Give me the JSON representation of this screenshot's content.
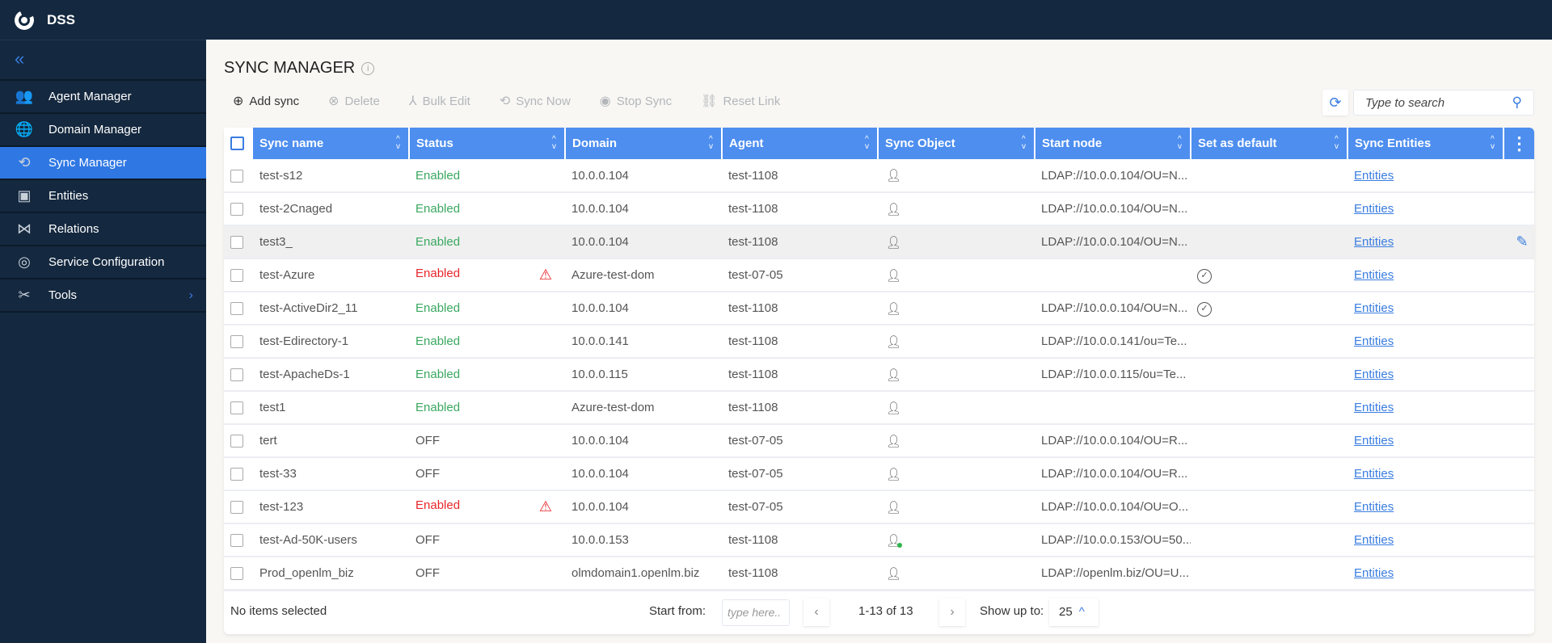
{
  "app": {
    "title": "DSS"
  },
  "sidebar": {
    "collapse_icon": "double-chevron-left",
    "items": [
      {
        "label": "Agent Manager",
        "icon": "agents-icon",
        "active": false
      },
      {
        "label": "Domain Manager",
        "icon": "globe-www-icon",
        "active": false
      },
      {
        "label": "Sync Manager",
        "icon": "sync-folder-icon",
        "active": true
      },
      {
        "label": "Entities",
        "icon": "id-badge-icon",
        "active": false
      },
      {
        "label": "Relations",
        "icon": "relations-icon",
        "active": false
      },
      {
        "label": "Service Configuration",
        "icon": "service-gear-icon",
        "active": false
      },
      {
        "label": "Tools",
        "icon": "tools-icon",
        "active": false,
        "has_submenu": true
      }
    ]
  },
  "page": {
    "title": "SYNC MANAGER"
  },
  "toolbar": {
    "add": "Add sync",
    "delete": "Delete",
    "bulk_edit": "Bulk Edit",
    "sync_now": "Sync Now",
    "stop_sync": "Stop Sync",
    "reset_link": "Reset Link"
  },
  "search": {
    "placeholder": "Type to search"
  },
  "table": {
    "columns": [
      "Sync name",
      "Status",
      "Domain",
      "Agent",
      "Sync Object",
      "Start node",
      "Set as default",
      "Sync Entities"
    ],
    "rows": [
      {
        "name": "test-s12",
        "status": "Enabled",
        "status_type": "ok",
        "warning": false,
        "domain": "10.0.0.104",
        "agent": "test-1108",
        "start_node": "LDAP://10.0.0.104/OU=N...",
        "default": false,
        "entities": "Entities"
      },
      {
        "name": "test-2Cnaged",
        "status": "Enabled",
        "status_type": "ok",
        "warning": false,
        "domain": "10.0.0.104",
        "agent": "test-1108",
        "start_node": "LDAP://10.0.0.104/OU=N...",
        "default": false,
        "entities": "Entities"
      },
      {
        "name": "test3_",
        "status": "Enabled",
        "status_type": "ok",
        "warning": false,
        "domain": "10.0.0.104",
        "agent": "test-1108",
        "start_node": "LDAP://10.0.0.104/OU=N...",
        "default": false,
        "entities": "Entities",
        "hovered": true
      },
      {
        "name": "test-Azure",
        "status": "Enabled",
        "status_type": "error",
        "warning": true,
        "domain": "Azure-test-dom",
        "agent": "test-07-05",
        "start_node": "",
        "default": true,
        "entities": "Entities"
      },
      {
        "name": "test-ActiveDir2_11",
        "status": "Enabled",
        "status_type": "ok",
        "warning": false,
        "domain": "10.0.0.104",
        "agent": "test-1108",
        "start_node": "LDAP://10.0.0.104/OU=N...",
        "default": true,
        "entities": "Entities"
      },
      {
        "name": "test-Edirectory-1",
        "status": "Enabled",
        "status_type": "ok",
        "warning": false,
        "domain": "10.0.0.141",
        "agent": "test-1108",
        "start_node": "LDAP://10.0.0.141/ou=Te...",
        "default": false,
        "entities": "Entities"
      },
      {
        "name": "test-ApacheDs-1",
        "status": "Enabled",
        "status_type": "ok",
        "warning": false,
        "domain": "10.0.0.115",
        "agent": "test-1108",
        "start_node": "LDAP://10.0.0.115/ou=Te...",
        "default": false,
        "entities": "Entities"
      },
      {
        "name": "test1",
        "status": "Enabled",
        "status_type": "ok",
        "warning": false,
        "domain": "Azure-test-dom",
        "agent": "test-1108",
        "start_node": "",
        "default": false,
        "entities": "Entities"
      },
      {
        "name": "tert",
        "status": "OFF",
        "status_type": "off",
        "warning": false,
        "domain": "10.0.0.104",
        "agent": "test-07-05",
        "start_node": "LDAP://10.0.0.104/OU=R...",
        "default": false,
        "entities": "Entities"
      },
      {
        "name": "test-33",
        "status": "OFF",
        "status_type": "off",
        "warning": false,
        "domain": "10.0.0.104",
        "agent": "test-07-05",
        "start_node": "LDAP://10.0.0.104/OU=R...",
        "default": false,
        "entities": "Entities"
      },
      {
        "name": "test-123",
        "status": "Enabled",
        "status_type": "error",
        "warning": true,
        "domain": "10.0.0.104",
        "agent": "test-07-05",
        "start_node": "LDAP://10.0.0.104/OU=O...",
        "default": false,
        "entities": "Entities"
      },
      {
        "name": "test-Ad-50K-users",
        "status": "OFF",
        "status_type": "off",
        "warning": false,
        "domain": "10.0.0.153",
        "agent": "test-1108",
        "start_node": "LDAP://10.0.0.153/OU=50...",
        "default": false,
        "entities": "Entities",
        "object_online": true
      },
      {
        "name": "Prod_openlm_biz",
        "status": "OFF",
        "status_type": "off",
        "warning": false,
        "domain": "olmdomain1.openlm.biz",
        "agent": "test-1108",
        "start_node": "LDAP://openlm.biz/OU=U...",
        "default": false,
        "entities": "Entities"
      }
    ]
  },
  "footer": {
    "selection": "No items selected",
    "start_from_label": "Start from:",
    "start_from_placeholder": "type here..",
    "range": "1-13 of 13",
    "show_up_to_label": "Show up to:",
    "page_size": "25"
  },
  "colors": {
    "header": "#4d8eef",
    "sidebar": "#14283f",
    "active": "#2f78e4",
    "enabled": "#3aa860",
    "error": "#e8262b"
  }
}
